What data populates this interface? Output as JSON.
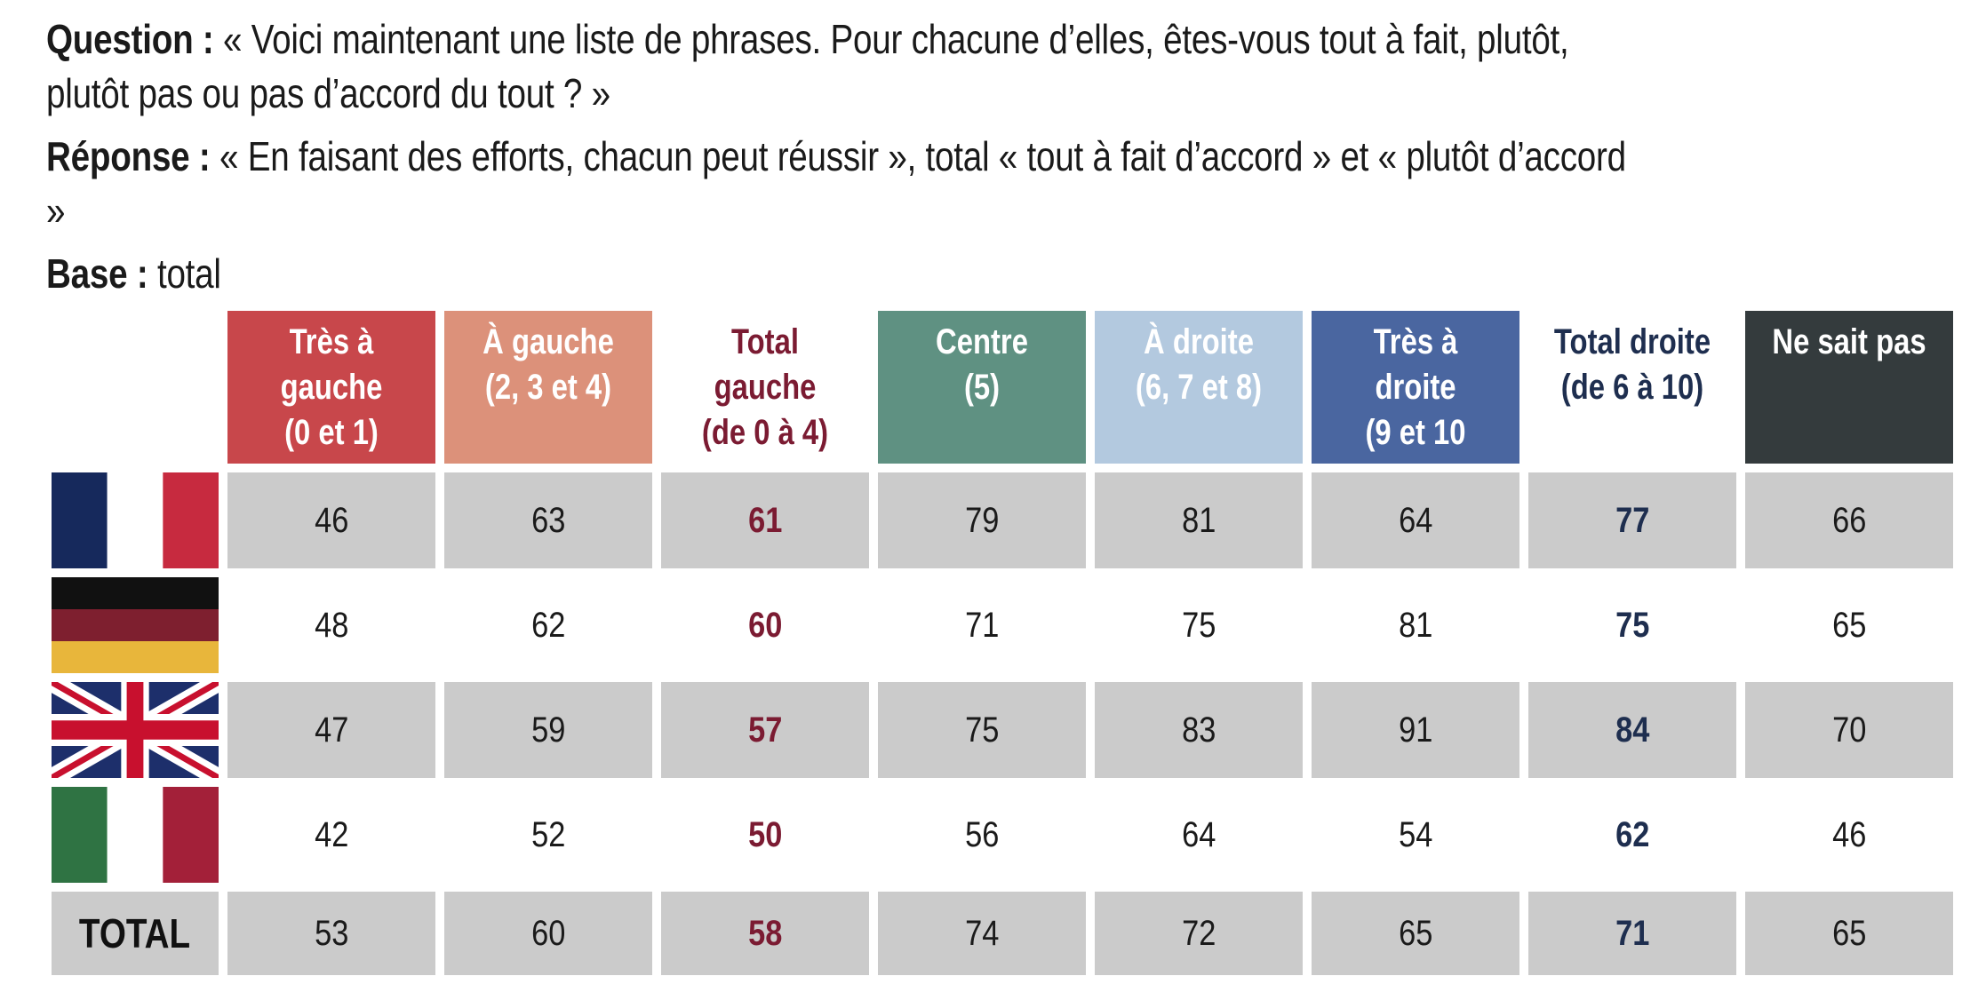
{
  "intro": {
    "question_label": "Question :",
    "question_text": " « Voici maintenant une liste de phrases. Pour chacune d’elles, êtes-vous tout à fait, plutôt,",
    "question_text_2": "plutôt pas ou pas d’accord du tout ? »",
    "answer_label": "Réponse :",
    "answer_text": " « En faisant des efforts, chacun peut réussir », total « tout à fait d’accord » et « plutôt d’accord »",
    "base_label": "Base :",
    "base_text": " total"
  },
  "table": {
    "headers": [
      {
        "label": "Très à\ngauche\n(0 et 1)",
        "bg": "#c8474b",
        "fg": "#ffffff"
      },
      {
        "label": "À gauche\n(2, 3 et 4)",
        "bg": "#dc917a",
        "fg": "#ffffff"
      },
      {
        "label": "Total\ngauche\n(de 0 à 4)",
        "bg": "#ffffff",
        "fg": "#7b1b32"
      },
      {
        "label": "Centre\n(5)",
        "bg": "#5f9182",
        "fg": "#ffffff"
      },
      {
        "label": "À droite\n(6, 7 et 8)",
        "bg": "#b3c9df",
        "fg": "#ffffff"
      },
      {
        "label": "Très à droite\n(9 et 10",
        "bg": "#4a66a0",
        "fg": "#ffffff"
      },
      {
        "label": "Total droite\n(de 6 à 10)",
        "bg": "#ffffff",
        "fg": "#1e2e4f"
      },
      {
        "label": "Ne sait pas",
        "bg": "#343b3d",
        "fg": "#ffffff"
      }
    ],
    "rows": [
      {
        "flag": "france-flag-icon",
        "values": [
          "46",
          "63",
          "61",
          "79",
          "81",
          "64",
          "77",
          "66"
        ]
      },
      {
        "flag": "germany-flag-icon",
        "values": [
          "48",
          "62",
          "60",
          "71",
          "75",
          "81",
          "75",
          "65"
        ]
      },
      {
        "flag": "united-kingdom-flag-icon",
        "values": [
          "47",
          "59",
          "57",
          "75",
          "83",
          "91",
          "84",
          "70"
        ]
      },
      {
        "flag": "italy-flag-icon",
        "values": [
          "42",
          "52",
          "50",
          "56",
          "64",
          "54",
          "62",
          "46"
        ]
      }
    ],
    "total_row": {
      "label": "TOTAL",
      "values": [
        "53",
        "60",
        "58",
        "74",
        "72",
        "65",
        "71",
        "65"
      ]
    },
    "colors": {
      "row_shade": "#cbcbcb",
      "total_left": "#7b1b32",
      "total_right": "#1e2e4f"
    }
  }
}
